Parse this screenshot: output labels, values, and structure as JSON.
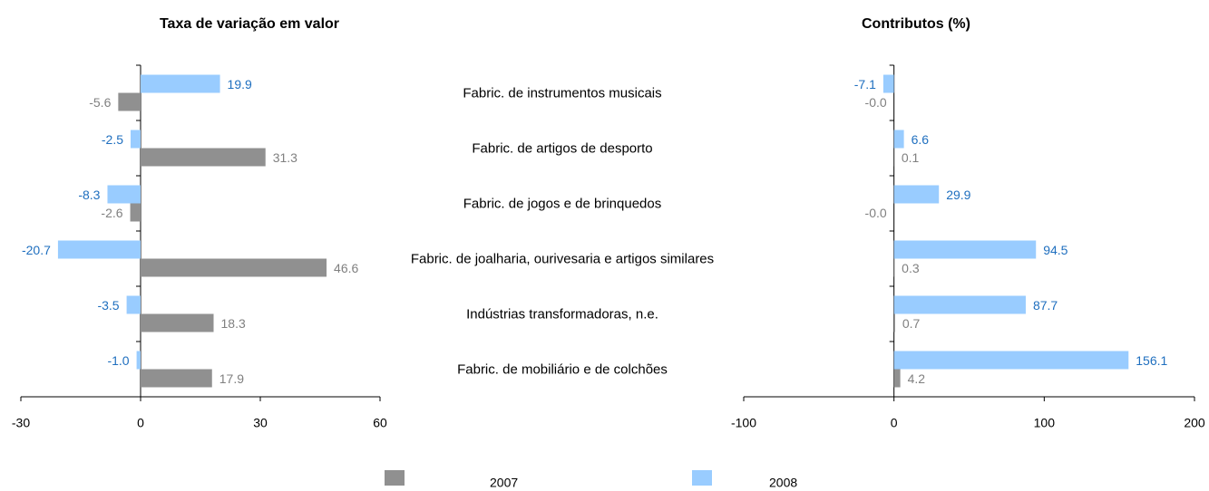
{
  "chart_data": [
    {
      "type": "bar",
      "orientation": "horizontal",
      "title": "Taxa de variação em valor",
      "categories": [
        "Fabric. de instrumentos musicais",
        "Fabric. de artigos de desporto",
        "Fabric. de jogos e de brinquedos",
        "Fabric. de joalharia, ourivesaria e artigos similares",
        "Indústrias transformadoras, n.e.",
        "Fabric. de mobiliário e de colchões"
      ],
      "series": [
        {
          "name": "2007",
          "color": "#909090",
          "values": [
            -5.6,
            31.3,
            -2.6,
            46.6,
            18.3,
            17.9
          ]
        },
        {
          "name": "2008",
          "color": "#99ccff",
          "values": [
            19.9,
            -2.5,
            -8.3,
            -20.7,
            -3.5,
            -1.0
          ],
          "value_labels": [
            "19.9",
            "-2.5",
            "-8.3",
            "-20.7",
            "-3.5",
            "-1.0"
          ]
        }
      ],
      "xlim": [
        -30,
        60
      ],
      "xticks": [
        -30,
        0,
        30,
        60
      ]
    },
    {
      "type": "bar",
      "orientation": "horizontal",
      "title": "Contributos (%)",
      "series": [
        {
          "color": "#909090",
          "values": [
            -0.0,
            0.1,
            -0.0,
            0.3,
            0.7,
            4.2
          ],
          "value_labels": [
            "-0.0",
            "0.1",
            "-0.0",
            "0.3",
            "0.7",
            "4.2"
          ]
        },
        {
          "color": "#99ccff",
          "values": [
            -7.1,
            6.6,
            29.9,
            94.5,
            87.7,
            156.1
          ]
        }
      ],
      "xlim": [
        -100,
        200
      ],
      "xticks": [
        -100,
        0,
        100,
        200
      ]
    }
  ]
}
